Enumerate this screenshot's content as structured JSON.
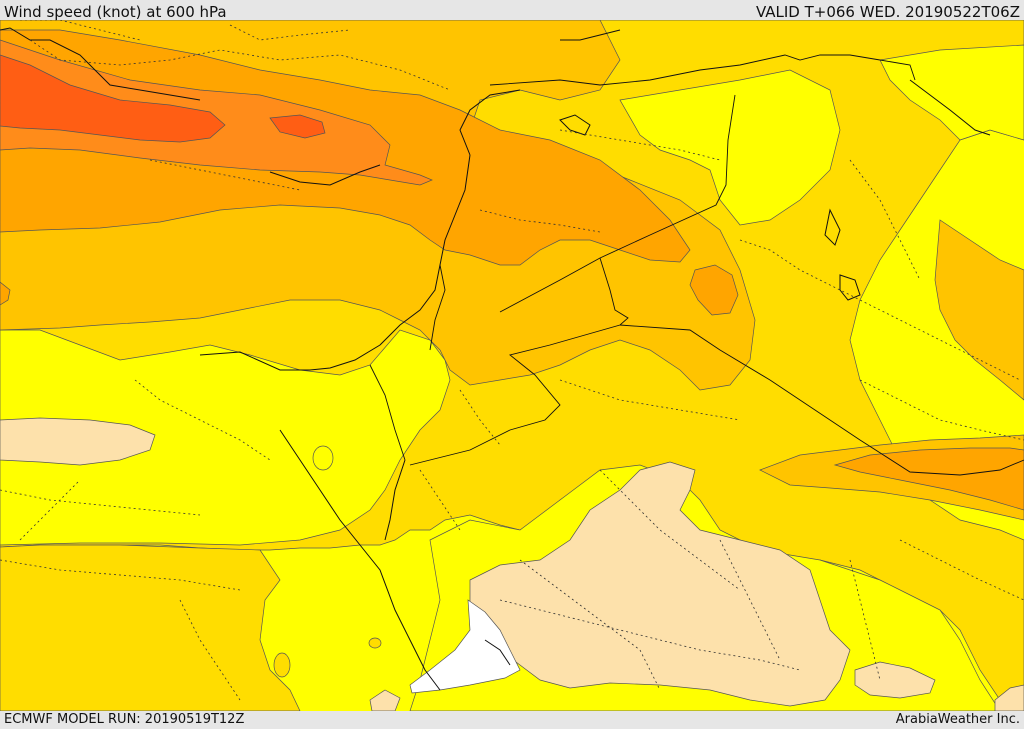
{
  "header": {
    "title": "Wind speed (knot) at 600 hPa",
    "valid": "VALID T+066 WED. 20190522T06Z"
  },
  "footer": {
    "model_run": "ECMWF MODEL RUN: 20190519T12Z",
    "credit": "ArabiaWeather Inc."
  },
  "colors": {
    "background": "#e6e6e6",
    "wind_band_lowest": "#ffffff",
    "wind_band_1": "#fde1ab",
    "wind_band_2": "#ffff00",
    "wind_band_3": "#ffdd00",
    "wind_band_4": "#ffc400",
    "wind_band_5": "#ffa500",
    "wind_band_6": "#ff8c1a",
    "wind_band_7": "#ff5e14",
    "coast_and_borders": "#111111",
    "contour_lines": "#555555"
  }
}
